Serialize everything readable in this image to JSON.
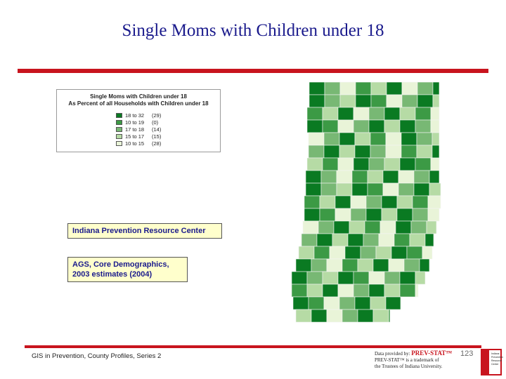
{
  "title": "Single Moms with Children under 18",
  "legend": {
    "title_line1": "Single Moms with Children under 18",
    "title_line2": "As Percent of all Households with Children under 18",
    "items": [
      {
        "range": "18 to 32",
        "count": "(29)",
        "color": "#0a7a22"
      },
      {
        "range": "10 to 19",
        "count": "(0)",
        "color": "#3c9a45"
      },
      {
        "range": "17 to 18",
        "count": "(14)",
        "color": "#78b874"
      },
      {
        "range": "15 to 17",
        "count": "(15)",
        "color": "#b6dba5"
      },
      {
        "range": "10 to 15",
        "count": "(28)",
        "color": "#e9f4d8"
      }
    ]
  },
  "source_box": "Indiana Prevention Resource Center",
  "data_box": {
    "line1": "AGS, Core Demographics,",
    "line2": "2003 estimates (2004)"
  },
  "footer": "GIS in Prevention, County Profiles, Series 2",
  "credit": {
    "provided_by": "Data provided by:",
    "brand": "PREV-STAT™",
    "trademark_line1": "PREV-STAT™ is a trademark of",
    "trademark_line2": "the Trustees of Indiana University."
  },
  "page_number": "123",
  "logo_text": [
    "Indiana",
    "Prevention",
    "Resource",
    "Center"
  ],
  "map_colors": [
    "#0a7a22",
    "#3c9a45",
    "#78b874",
    "#b6dba5",
    "#e9f4d8"
  ]
}
